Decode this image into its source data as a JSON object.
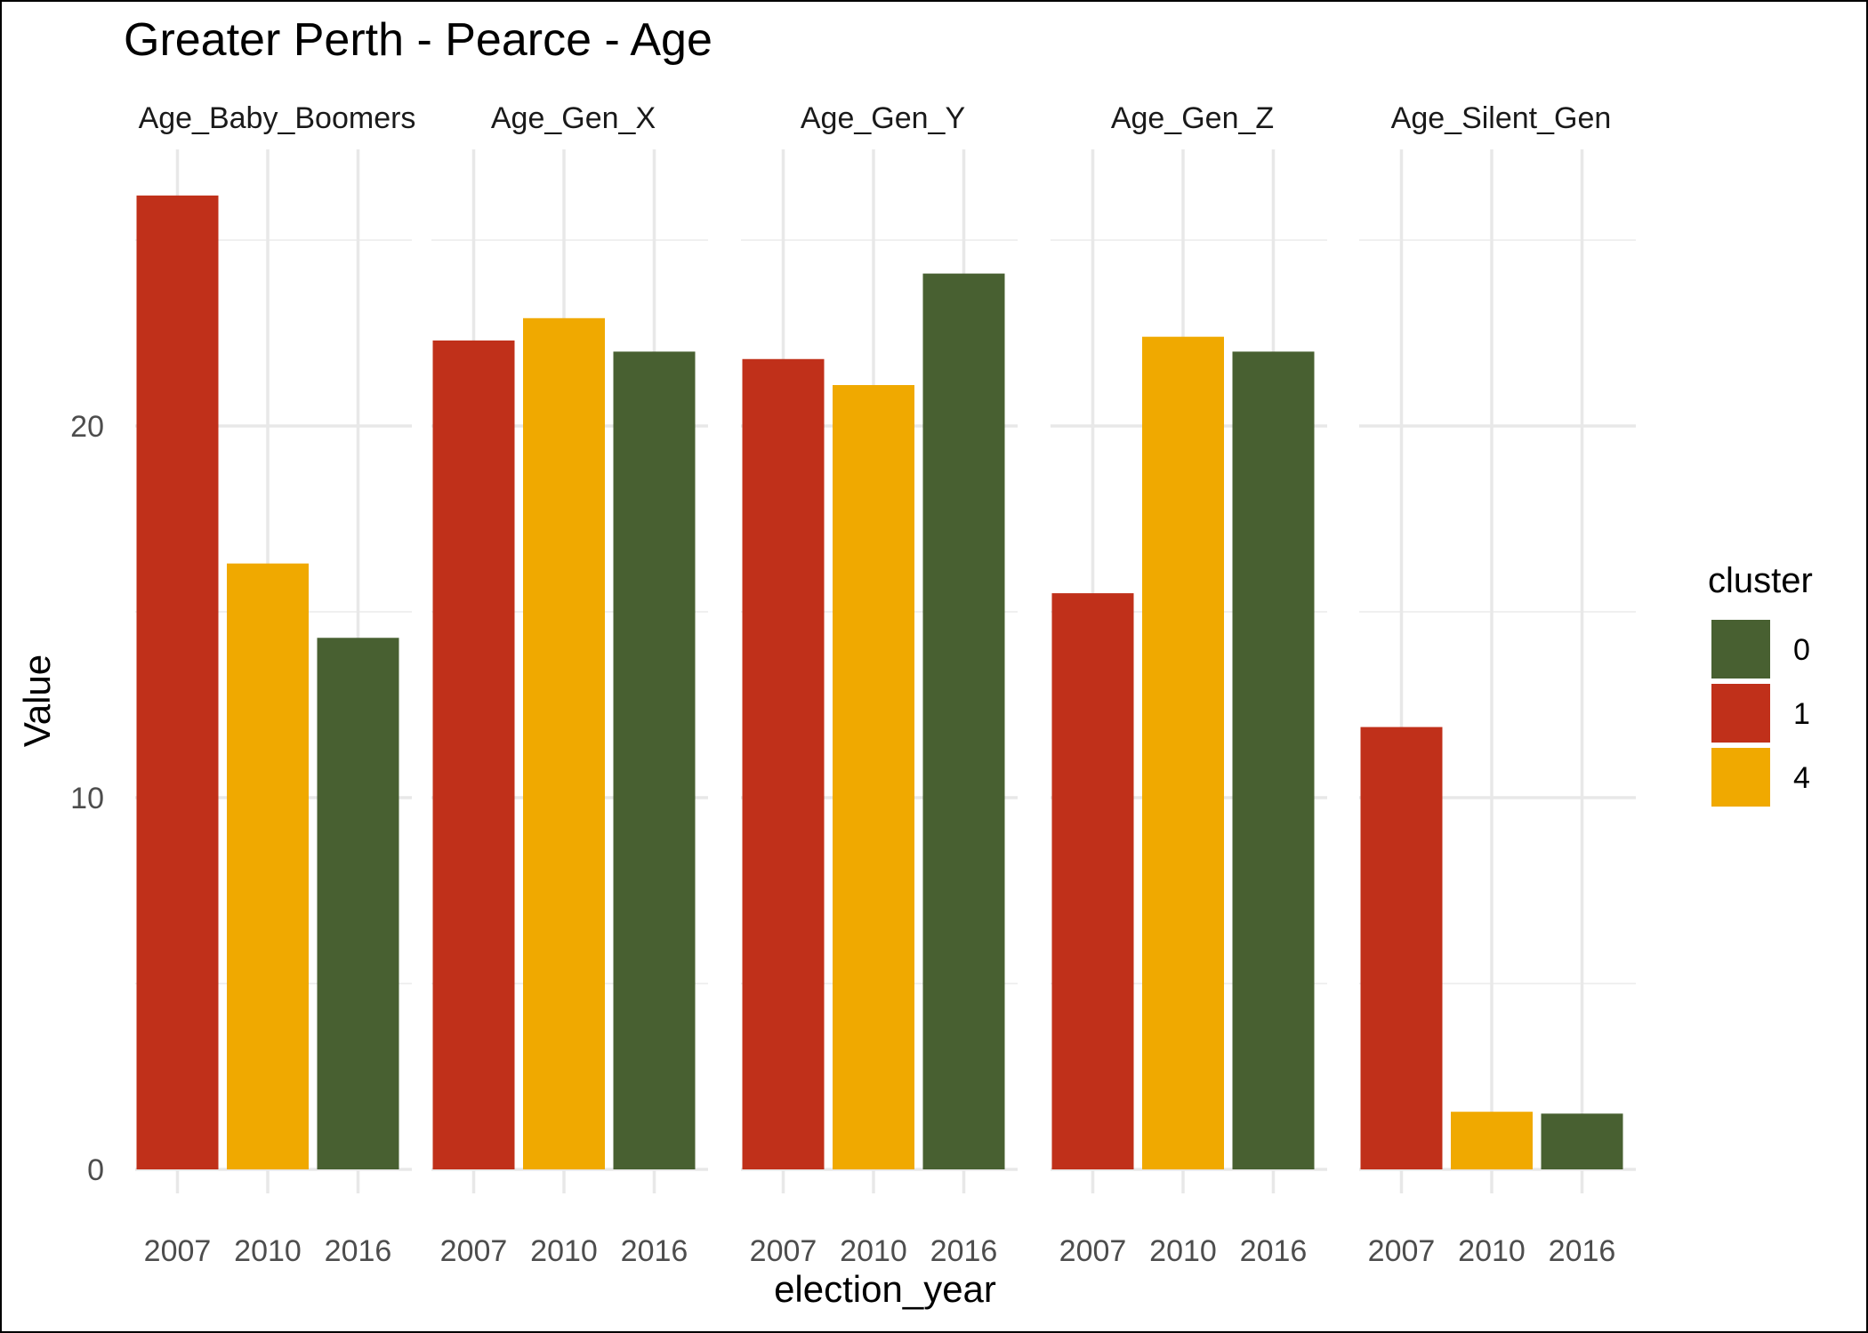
{
  "chart_data": {
    "type": "bar",
    "title": "Greater Perth - Pearce - Age",
    "xlabel": "election_year",
    "ylabel": "Value",
    "ylim": [
      0,
      27.5
    ],
    "yticks": [
      0,
      10,
      20
    ],
    "grid": true,
    "legend": {
      "title": "cluster",
      "position": "right",
      "entries": [
        "0",
        "1",
        "4"
      ]
    },
    "colors": {
      "0": "#486031",
      "1": "#c0301a",
      "4": "#f0a900"
    },
    "categories": [
      "2007",
      "2010",
      "2016"
    ],
    "panels": [
      {
        "name": "Age_Baby_Boomers",
        "values": [
          26.2,
          16.3,
          14.3
        ],
        "clusters": [
          "1",
          "4",
          "0"
        ]
      },
      {
        "name": "Age_Gen_X",
        "values": [
          22.3,
          22.9,
          22.0
        ],
        "clusters": [
          "1",
          "4",
          "0"
        ]
      },
      {
        "name": "Age_Gen_Y",
        "values": [
          21.8,
          21.1,
          24.1
        ],
        "clusters": [
          "1",
          "4",
          "0"
        ]
      },
      {
        "name": "Age_Gen_Z",
        "values": [
          15.5,
          22.4,
          22.0
        ],
        "clusters": [
          "1",
          "4",
          "0"
        ]
      },
      {
        "name": "Age_Silent_Gen",
        "values": [
          11.9,
          1.55,
          1.5
        ],
        "clusters": [
          "1",
          "4",
          "0"
        ]
      }
    ]
  }
}
